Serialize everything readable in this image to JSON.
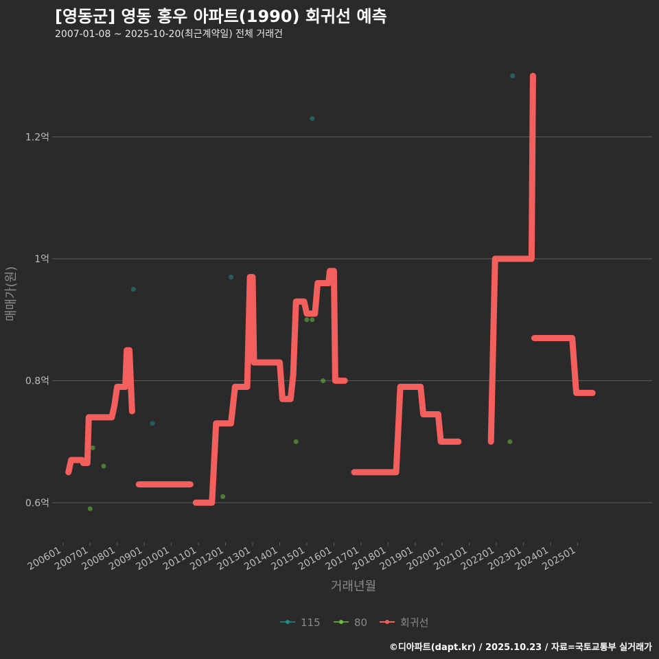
{
  "header": {
    "title": "[영동군] 영동 홍우 아파트(1990) 회귀선 예측",
    "subtitle": "2007-01-08 ~ 2025-10-20(최근계약일) 전체 거래건"
  },
  "caption": "©디아파트(dapt.kr) / 2025.10.23 / 자료=국토교통부 실거래가",
  "colors": {
    "background": "#2b2a2b",
    "grid": "#5d5d5d",
    "line": "#f25f5c",
    "series_115": "#1f8a8a",
    "series_80": "#6abf3f",
    "axis_text": "#bdbdbd",
    "axis_title": "#8a8a8a"
  },
  "chart_data": {
    "type": "line",
    "title": "[영동군] 영동 홍우 아파트(1990) 회귀선 예측",
    "xlabel": "거래년월",
    "ylabel": "매매가(원)",
    "x_unit": "decimal year",
    "xlim": [
      2005.7,
      2027.75
    ],
    "ylim": [
      0.535,
      1.34
    ],
    "y_unit": "억원",
    "x_ticks": [
      {
        "value": 2006.0,
        "label": "200601"
      },
      {
        "value": 2007.0,
        "label": "200701"
      },
      {
        "value": 2008.0,
        "label": "200801"
      },
      {
        "value": 2009.0,
        "label": "200901"
      },
      {
        "value": 2010.0,
        "label": "201001"
      },
      {
        "value": 2011.0,
        "label": "201101"
      },
      {
        "value": 2012.0,
        "label": "201201"
      },
      {
        "value": 2013.0,
        "label": "201301"
      },
      {
        "value": 2014.0,
        "label": "201401"
      },
      {
        "value": 2015.0,
        "label": "201501"
      },
      {
        "value": 2016.0,
        "label": "201601"
      },
      {
        "value": 2017.0,
        "label": "201701"
      },
      {
        "value": 2018.0,
        "label": "201801"
      },
      {
        "value": 2019.0,
        "label": "201901"
      },
      {
        "value": 2020.0,
        "label": "202001"
      },
      {
        "value": 2021.0,
        "label": "202101"
      },
      {
        "value": 2022.0,
        "label": "202201"
      },
      {
        "value": 2023.0,
        "label": "202301"
      },
      {
        "value": 2024.0,
        "label": "202401"
      },
      {
        "value": 2025.0,
        "label": "202501"
      }
    ],
    "y_ticks": [
      {
        "value": 0.6,
        "label": "0.6억"
      },
      {
        "value": 0.8,
        "label": "0.8억"
      },
      {
        "value": 1.0,
        "label": "1억"
      },
      {
        "value": 1.2,
        "label": "1.2억"
      }
    ],
    "legend": {
      "position": "bottom",
      "entries": [
        {
          "label": "115",
          "key": "series_115"
        },
        {
          "label": "80",
          "key": "series_80"
        },
        {
          "label": "회귀선",
          "key": "line"
        }
      ]
    },
    "series": [
      {
        "name": "115",
        "kind": "scatter",
        "points": [
          [
            2008.6,
            0.95
          ],
          [
            2015.2,
            1.23
          ],
          [
            2022.6,
            1.3
          ],
          [
            2009.3,
            0.73
          ],
          [
            2012.2,
            0.97
          ]
        ]
      },
      {
        "name": "80",
        "kind": "scatter",
        "points": [
          [
            2007.0,
            0.59
          ],
          [
            2007.1,
            0.69
          ],
          [
            2007.5,
            0.66
          ],
          [
            2011.3,
            0.6
          ],
          [
            2011.9,
            0.61
          ],
          [
            2014.6,
            0.7
          ],
          [
            2015.0,
            0.9
          ],
          [
            2015.2,
            0.9
          ],
          [
            2015.6,
            0.8
          ],
          [
            2022.5,
            0.7
          ]
        ]
      },
      {
        "name": "회귀선",
        "kind": "line",
        "segments": [
          [
            [
              2006.2,
              0.65
            ],
            [
              2006.3,
              0.67
            ],
            [
              2006.7,
              0.67
            ],
            [
              2006.75,
              0.665
            ],
            [
              2006.9,
              0.665
            ],
            [
              2006.95,
              0.74
            ],
            [
              2007.8,
              0.74
            ],
            [
              2007.9,
              0.76
            ],
            [
              2008.0,
              0.79
            ],
            [
              2008.3,
              0.79
            ],
            [
              2008.35,
              0.85
            ],
            [
              2008.45,
              0.85
            ],
            [
              2008.55,
              0.75
            ]
          ],
          [
            [
              2008.8,
              0.63
            ],
            [
              2010.7,
              0.63
            ]
          ],
          [
            [
              2010.9,
              0.6
            ],
            [
              2011.5,
              0.6
            ],
            [
              2011.65,
              0.73
            ],
            [
              2012.2,
              0.73
            ],
            [
              2012.35,
              0.79
            ],
            [
              2012.8,
              0.79
            ],
            [
              2012.9,
              0.97
            ],
            [
              2013.0,
              0.97
            ],
            [
              2013.05,
              0.83
            ],
            [
              2014.0,
              0.83
            ],
            [
              2014.1,
              0.77
            ],
            [
              2014.4,
              0.77
            ],
            [
              2014.5,
              0.81
            ],
            [
              2014.6,
              0.93
            ],
            [
              2014.9,
              0.93
            ],
            [
              2015.0,
              0.91
            ],
            [
              2015.3,
              0.91
            ],
            [
              2015.4,
              0.96
            ],
            [
              2015.8,
              0.96
            ],
            [
              2015.85,
              0.98
            ],
            [
              2016.0,
              0.98
            ],
            [
              2016.05,
              0.8
            ],
            [
              2016.4,
              0.8
            ]
          ],
          [
            [
              2016.75,
              0.65
            ],
            [
              2018.3,
              0.65
            ],
            [
              2018.45,
              0.79
            ],
            [
              2019.2,
              0.79
            ],
            [
              2019.3,
              0.745
            ],
            [
              2019.85,
              0.745
            ],
            [
              2019.95,
              0.7
            ],
            [
              2020.6,
              0.7
            ]
          ],
          [
            [
              2021.8,
              0.7
            ],
            [
              2021.95,
              1.0
            ],
            [
              2023.3,
              1.0
            ],
            [
              2023.35,
              1.3
            ]
          ],
          [
            [
              2023.4,
              0.87
            ],
            [
              2024.8,
              0.87
            ],
            [
              2024.95,
              0.78
            ],
            [
              2025.55,
              0.78
            ]
          ]
        ]
      }
    ]
  }
}
